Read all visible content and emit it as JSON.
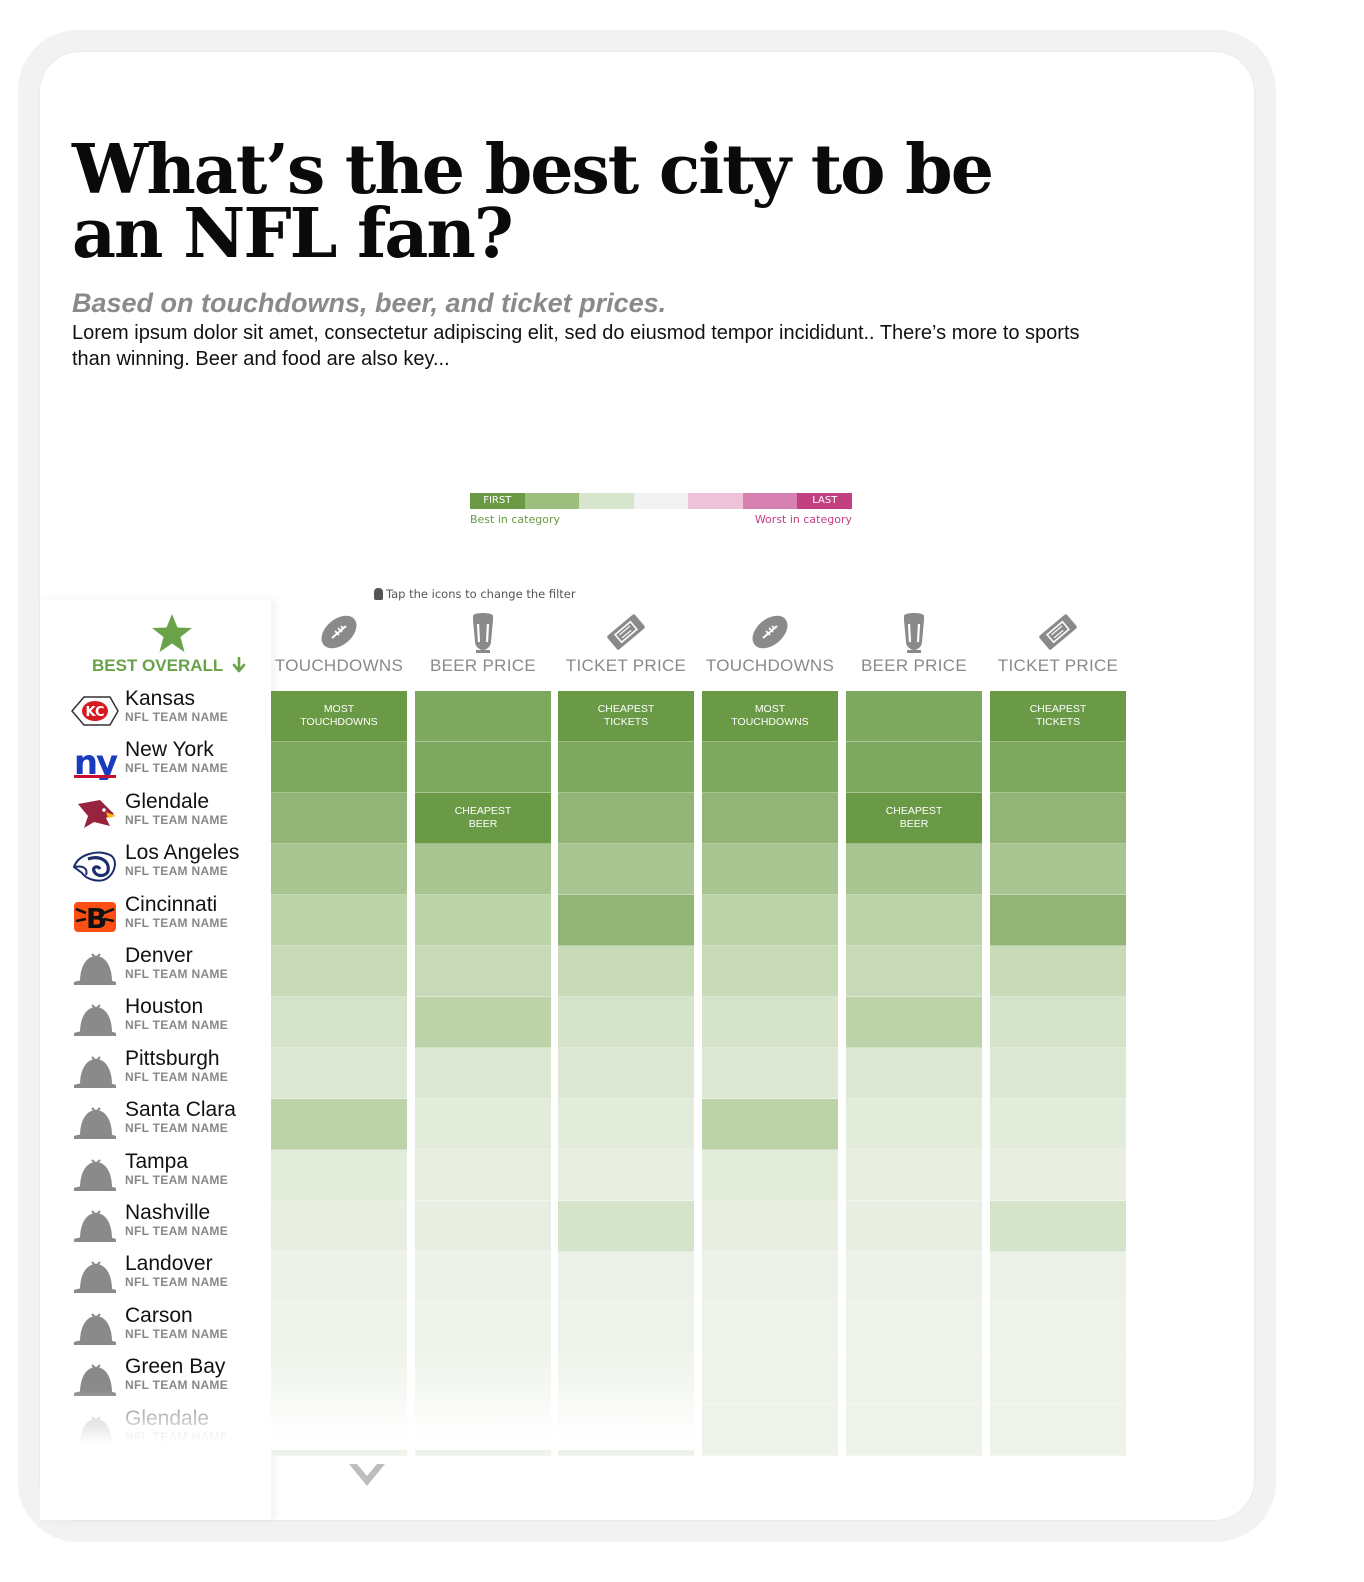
{
  "header": {
    "title": "What’s the best city to be an NFL fan?",
    "subtitle": "Based on touchdowns, beer, and ticket prices.",
    "intro": "Lorem ipsum dolor sit amet, consectetur adipiscing elit, sed do eiusmod tempor incididunt.. There’s more to sports than winning. Beer and food are also key..."
  },
  "legend": {
    "first": "FIRST",
    "last": "LAST",
    "best": "Best in category",
    "worst": "Worst in category",
    "colors": [
      "#6a9a45",
      "#9cbf7e",
      "#d7e5cc",
      "#f2f2f2",
      "#eec2d9",
      "#d680b0",
      "#c2407f"
    ]
  },
  "hint": "Tap the icons to change the filter",
  "best_overall": {
    "label": "BEST OVERALL",
    "icon": "star-icon",
    "arrow": "arrow-down-icon"
  },
  "columns": [
    {
      "label": "TOUCHDOWNS",
      "icon": "football-icon"
    },
    {
      "label": "BEER PRICE",
      "icon": "beer-glass-icon"
    },
    {
      "label": "TICKET PRICE",
      "icon": "ticket-icon"
    },
    {
      "label": "TOUCHDOWNS",
      "icon": "football-icon"
    },
    {
      "label": "BEER PRICE",
      "icon": "beer-glass-icon"
    },
    {
      "label": "TICKET PRICE",
      "icon": "ticket-icon"
    }
  ],
  "teams": [
    {
      "city": "Kansas",
      "sub": "NFL TEAM NAME",
      "logo": "chiefs-logo-icon"
    },
    {
      "city": "New York",
      "sub": "NFL TEAM NAME",
      "logo": "giants-logo-icon"
    },
    {
      "city": "Glendale",
      "sub": "NFL TEAM NAME",
      "logo": "cardinals-logo-icon"
    },
    {
      "city": "Los Angeles",
      "sub": "NFL TEAM NAME",
      "logo": "rams-logo-icon"
    },
    {
      "city": "Cincinnati",
      "sub": "NFL TEAM NAME",
      "logo": "bengals-logo-icon"
    },
    {
      "city": "Denver",
      "sub": "NFL TEAM NAME",
      "logo": "helmet-placeholder-icon"
    },
    {
      "city": "Houston",
      "sub": "NFL TEAM NAME",
      "logo": "helmet-placeholder-icon"
    },
    {
      "city": "Pittsburgh",
      "sub": "NFL TEAM NAME",
      "logo": "helmet-placeholder-icon"
    },
    {
      "city": "Santa Clara",
      "sub": "NFL TEAM NAME",
      "logo": "helmet-placeholder-icon"
    },
    {
      "city": "Tampa",
      "sub": "NFL TEAM NAME",
      "logo": "helmet-placeholder-icon"
    },
    {
      "city": "Nashville",
      "sub": "NFL TEAM NAME",
      "logo": "helmet-placeholder-icon"
    },
    {
      "city": "Landover",
      "sub": "NFL TEAM NAME",
      "logo": "helmet-placeholder-icon"
    },
    {
      "city": "Carson",
      "sub": "NFL TEAM NAME",
      "logo": "helmet-placeholder-icon"
    },
    {
      "city": "Green Bay",
      "sub": "NFL TEAM NAME",
      "logo": "helmet-placeholder-icon"
    },
    {
      "city": "Glendale",
      "sub": "NFL TEAM NAME",
      "logo": "helmet-placeholder-icon"
    }
  ],
  "grid": {
    "colors": [
      "#6a9a45",
      "#7ea85e",
      "#92b577",
      "#a8c490",
      "#bcd2a8",
      "#c9dab9",
      "#d6e3cb",
      "#dde8d4",
      "#e3ecdb",
      "#e8efe2",
      "#ecf2e7",
      "#eef3ea"
    ],
    "col_ranks": [
      [
        0,
        1,
        2,
        3,
        4,
        5,
        6,
        7,
        4,
        8,
        9,
        10,
        11,
        11,
        11
      ],
      [
        1,
        1,
        0,
        3,
        4,
        5,
        4,
        7,
        8,
        9,
        9,
        10,
        11,
        11,
        11
      ],
      [
        0,
        1,
        2,
        3,
        2,
        5,
        6,
        7,
        8,
        9,
        6,
        10,
        11,
        11,
        11
      ],
      [
        0,
        1,
        2,
        3,
        4,
        5,
        6,
        7,
        4,
        8,
        9,
        10,
        11,
        11,
        11
      ],
      [
        1,
        1,
        0,
        3,
        4,
        5,
        4,
        7,
        8,
        9,
        9,
        10,
        11,
        11,
        11
      ],
      [
        0,
        1,
        2,
        3,
        2,
        5,
        6,
        7,
        8,
        9,
        6,
        10,
        11,
        11,
        11
      ]
    ],
    "labels": [
      [
        "MOST",
        "TOUCHDOWNS"
      ],
      [
        "CHEAPEST",
        "BEER"
      ],
      [
        "CHEAPEST",
        "TICKETS"
      ],
      [
        "MOST",
        "TOUCHDOWNS"
      ],
      [
        "CHEAPEST",
        "BEER"
      ],
      [
        "CHEAPEST",
        "TICKETS"
      ]
    ],
    "col_rows": [
      15,
      15,
      15,
      15,
      15,
      15
    ]
  }
}
